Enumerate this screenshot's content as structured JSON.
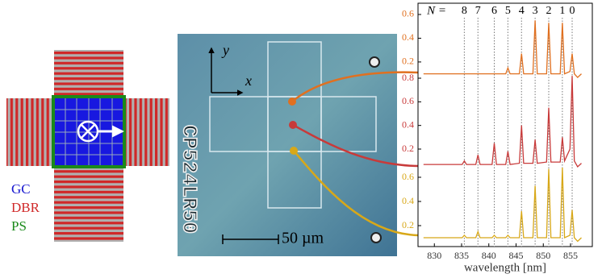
{
  "schematic": {
    "labels": [
      "GC",
      "DBR",
      "PS"
    ]
  },
  "micrograph": {
    "axis_x": "x",
    "axis_y": "y",
    "scale_bar": "50 µm",
    "chip_label": "CP524LR50"
  },
  "chart_data": {
    "type": "line",
    "xlabel": "wavelength [nm]",
    "mode_prefix": "N =",
    "modes": [
      {
        "n": 8,
        "x": 835.5
      },
      {
        "n": 7,
        "x": 838
      },
      {
        "n": 6,
        "x": 841
      },
      {
        "n": 5,
        "x": 843.5
      },
      {
        "n": 4,
        "x": 846
      },
      {
        "n": 3,
        "x": 848.5
      },
      {
        "n": 2,
        "x": 851
      },
      {
        "n": 1,
        "x": 853.5
      },
      {
        "n": 0,
        "x": 855.3
      }
    ],
    "xlim": [
      827,
      859
    ],
    "xticks": [
      830,
      835,
      840,
      845,
      850,
      855
    ],
    "x": [
      828,
      830,
      833,
      835.1,
      835.5,
      835.9,
      837.6,
      838,
      838.4,
      840.6,
      841,
      841.4,
      843.1,
      843.5,
      843.9,
      845.6,
      846,
      846.4,
      848.1,
      848.5,
      848.9,
      850.6,
      851,
      851.4,
      853.1,
      853.5,
      853.9,
      854.9,
      855.3,
      855.7,
      856.3,
      857
    ],
    "series": [
      {
        "color": "#e07020",
        "ylim": [
          0.05,
          0.65
        ],
        "yticks": [
          0.2,
          0.4,
          0.6
        ],
        "values": [
          0.1,
          0.1,
          0.1,
          0.1,
          0.1,
          0.1,
          0.1,
          0.1,
          0.1,
          0.1,
          0.1,
          0.1,
          0.1,
          0.15,
          0.1,
          0.1,
          0.27,
          0.1,
          0.1,
          0.55,
          0.1,
          0.1,
          0.53,
          0.1,
          0.1,
          0.53,
          0.1,
          0.12,
          0.27,
          0.1,
          0.07,
          0.1
        ]
      },
      {
        "color": "#c83a3a",
        "ylim": [
          0.05,
          0.85
        ],
        "yticks": [
          0.2,
          0.4,
          0.6,
          0.8
        ],
        "values": [
          0.07,
          0.07,
          0.07,
          0.07,
          0.1,
          0.07,
          0.07,
          0.15,
          0.07,
          0.07,
          0.25,
          0.07,
          0.07,
          0.18,
          0.07,
          0.08,
          0.4,
          0.08,
          0.08,
          0.28,
          0.08,
          0.09,
          0.55,
          0.09,
          0.09,
          0.3,
          0.1,
          0.2,
          0.82,
          0.1,
          0.05,
          0.08
        ]
      },
      {
        "color": "#d8a818",
        "ylim": [
          0.05,
          0.65
        ],
        "yticks": [
          0.2,
          0.4,
          0.6
        ],
        "values": [
          0.1,
          0.1,
          0.1,
          0.1,
          0.12,
          0.1,
          0.1,
          0.15,
          0.1,
          0.1,
          0.12,
          0.1,
          0.1,
          0.12,
          0.1,
          0.1,
          0.32,
          0.1,
          0.1,
          0.53,
          0.1,
          0.1,
          0.67,
          0.1,
          0.1,
          0.68,
          0.1,
          0.12,
          0.33,
          0.1,
          0.07,
          0.1
        ]
      }
    ]
  }
}
